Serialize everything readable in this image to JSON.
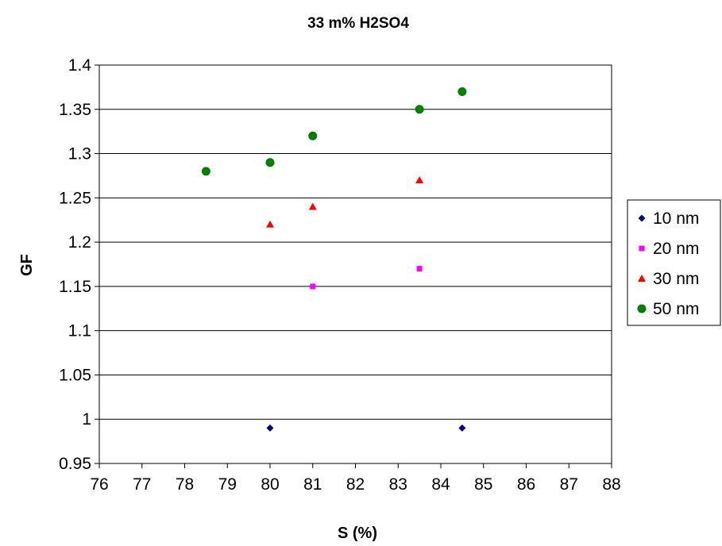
{
  "chart_data": {
    "type": "scatter",
    "title": "33 m% H2SO4",
    "xlabel": "S (%)",
    "ylabel": "GF",
    "xlim": [
      76,
      88
    ],
    "ylim": [
      0.95,
      1.4
    ],
    "xticks": [
      "76",
      "77",
      "78",
      "79",
      "80",
      "81",
      "82",
      "83",
      "84",
      "85",
      "86",
      "87",
      "88"
    ],
    "yticks": [
      "0.95",
      "1",
      "1.05",
      "1.1",
      "1.15",
      "1.2",
      "1.25",
      "1.3",
      "1.35",
      "1.4"
    ],
    "grid": "horizontal",
    "legend_position": "right",
    "series": [
      {
        "name": "10 nm",
        "marker": "diamond",
        "color": "#000080",
        "points": [
          [
            80,
            0.99
          ],
          [
            84.5,
            0.99
          ]
        ]
      },
      {
        "name": "20 nm",
        "marker": "square",
        "color": "#FF00FF",
        "points": [
          [
            81,
            1.15
          ],
          [
            83.5,
            1.17
          ]
        ]
      },
      {
        "name": "30 nm",
        "marker": "triangle",
        "color": "#FF0000",
        "points": [
          [
            80,
            1.22
          ],
          [
            81,
            1.24
          ],
          [
            83.5,
            1.27
          ]
        ]
      },
      {
        "name": "50 nm",
        "marker": "circle",
        "color": "#008000",
        "points": [
          [
            78.5,
            1.28
          ],
          [
            80,
            1.29
          ],
          [
            81,
            1.32
          ],
          [
            83.5,
            1.35
          ],
          [
            84.5,
            1.37
          ]
        ]
      }
    ]
  }
}
